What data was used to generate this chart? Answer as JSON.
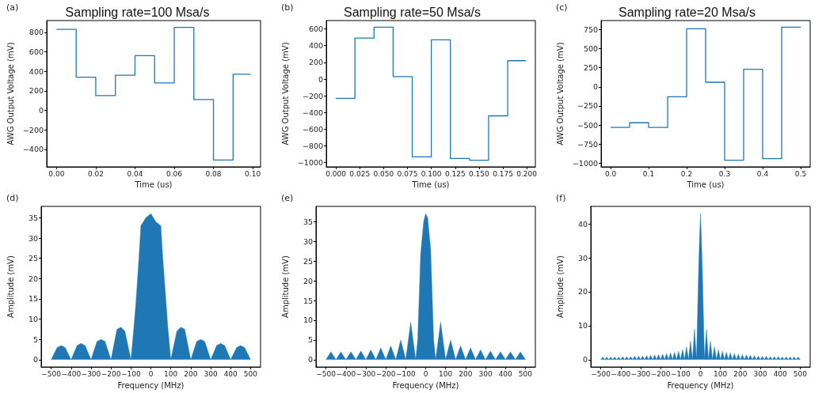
{
  "chart_data": [
    {
      "type": "step",
      "title": "Sampling rate=100 Msa/s",
      "annotations": [
        "(a)"
      ],
      "xlabel": "Time (us)",
      "ylabel": "AWG Output Voltage (mV)",
      "x": [
        0,
        0.01,
        0.02,
        0.03,
        0.04,
        0.05,
        0.06,
        0.07,
        0.08,
        0.09,
        0.099
      ],
      "series": [
        {
          "color": "#1f77b4",
          "values": [
            830,
            340,
            150,
            360,
            560,
            280,
            850,
            110,
            -510,
            370,
            370
          ]
        }
      ],
      "xlim": [
        -0.005,
        0.104
      ],
      "xticks": [
        {
          "value": 0,
          "label": "0.00"
        },
        0.02,
        0.04,
        0.06,
        0.08,
        {
          "value": 0.1,
          "label": "0.10"
        }
      ],
      "ylim": [
        -580,
        920
      ],
      "yticks": [
        {
          "value": -400,
          "label": "−400"
        },
        {
          "value": -200,
          "label": "−200"
        },
        0,
        200,
        400,
        600,
        800
      ]
    },
    {
      "type": "step",
      "title": "Sampling rate=50 Msa/s",
      "annotations": [
        "(b)"
      ],
      "xlabel": "Time (us)",
      "ylabel": "AWG Output Voltage (mV)",
      "x": [
        0,
        0.02,
        0.04,
        0.06,
        0.08,
        0.1,
        0.12,
        0.14,
        0.16,
        0.18,
        0.199
      ],
      "series": [
        {
          "color": "#1f77b4",
          "values": [
            -230,
            490,
            620,
            30,
            -930,
            470,
            -950,
            -970,
            -440,
            220,
            220
          ]
        }
      ],
      "xlim": [
        -0.01,
        0.209
      ],
      "xticks": [
        {
          "value": 0,
          "label": "0.000"
        },
        0.025,
        {
          "value": 0.05,
          "label": "0.050"
        },
        0.075,
        {
          "value": 0.1,
          "label": "0.100"
        },
        0.125,
        {
          "value": 0.15,
          "label": "0.150"
        },
        0.175,
        {
          "value": 0.2,
          "label": "0.200"
        }
      ],
      "ylim": [
        -1050,
        700
      ],
      "yticks": [
        {
          "value": -1000,
          "label": "−1000"
        },
        {
          "value": -800,
          "label": "−800"
        },
        {
          "value": -600,
          "label": "−600"
        },
        {
          "value": -400,
          "label": "−400"
        },
        {
          "value": -200,
          "label": "−200"
        },
        0,
        200,
        400,
        600
      ]
    },
    {
      "type": "step",
      "title": "Sampling rate=20 Msa/s",
      "annotations": [
        "(c)"
      ],
      "xlabel": "Time (us)",
      "ylabel": "AWG Output Voltage (mV)",
      "x": [
        0,
        0.05,
        0.1,
        0.15,
        0.2,
        0.25,
        0.3,
        0.35,
        0.4,
        0.45,
        0.5
      ],
      "series": [
        {
          "color": "#1f77b4",
          "values": [
            -530,
            -470,
            -530,
            -130,
            760,
            60,
            -960,
            230,
            -940,
            780,
            780
          ]
        }
      ],
      "xlim": [
        -0.025,
        0.525
      ],
      "xticks": [
        {
          "value": 0,
          "label": "0.0"
        },
        0.1,
        0.2,
        0.3,
        0.4,
        0.5
      ],
      "ylim": [
        -1047,
        867
      ],
      "yticks": [
        {
          "value": -1000,
          "label": "−1000"
        },
        {
          "value": -750,
          "label": "−750"
        },
        {
          "value": -500,
          "label": "−500"
        },
        {
          "value": -250,
          "label": "−250"
        },
        0,
        250,
        500,
        750
      ]
    },
    {
      "type": "area",
      "annotations": [
        "(d)"
      ],
      "xlabel": "Frequency (MHz)",
      "ylabel": "Amplitude (mV)",
      "x": [
        -500,
        -470,
        -450,
        -430,
        -400,
        -370,
        -350,
        -330,
        -300,
        -270,
        -250,
        -230,
        -200,
        -170,
        -150,
        -130,
        -100,
        -85,
        -75,
        -60,
        -50,
        -25,
        0,
        25,
        50,
        60,
        75,
        85,
        100,
        130,
        150,
        170,
        200,
        230,
        250,
        270,
        300,
        330,
        350,
        370,
        400,
        430,
        450,
        470,
        500
      ],
      "series": [
        {
          "color": "#1f77b4",
          "values": [
            0,
            3,
            3.5,
            3,
            0,
            3.5,
            4,
            3.5,
            0,
            4.5,
            5,
            4.5,
            0,
            7.5,
            8,
            7,
            0,
            8,
            14,
            25,
            33,
            35,
            36,
            34,
            33,
            25,
            15,
            8,
            0,
            7,
            8,
            7.5,
            0,
            4.5,
            5,
            4.5,
            0,
            3.5,
            4,
            3.5,
            0,
            3,
            3.5,
            3,
            0
          ]
        }
      ],
      "xlim": [
        -550,
        550
      ],
      "xticks": [
        {
          "value": -500,
          "label": "−500"
        },
        {
          "value": -400,
          "label": "−400"
        },
        {
          "value": -300,
          "label": "−300"
        },
        {
          "value": -200,
          "label": "−200"
        },
        {
          "value": -100,
          "label": "−100"
        },
        0,
        100,
        200,
        300,
        400,
        500
      ],
      "ylim": [
        -1.8,
        37.8
      ],
      "yticks": [
        0,
        5,
        10,
        15,
        20,
        25,
        30,
        35
      ]
    },
    {
      "type": "area",
      "annotations": [
        "(e)"
      ],
      "xlabel": "Frequency (MHz)",
      "ylabel": "Amplitude (mV)",
      "x": [
        -500,
        -475,
        -450,
        -425,
        -400,
        -375,
        -350,
        -325,
        -300,
        -275,
        -250,
        -225,
        -200,
        -175,
        -150,
        -125,
        -100,
        -75,
        -50,
        -40,
        -25,
        -10,
        0,
        10,
        25,
        40,
        50,
        75,
        100,
        125,
        150,
        175,
        200,
        225,
        250,
        275,
        300,
        325,
        350,
        375,
        400,
        425,
        450,
        475,
        500
      ],
      "series": [
        {
          "color": "#1f77b4",
          "values": [
            0,
            2,
            0,
            2,
            0,
            2,
            0,
            2.2,
            0,
            2.5,
            0,
            3,
            0,
            3.5,
            0,
            5,
            0,
            9.5,
            0,
            5,
            27,
            35,
            37,
            36,
            28,
            5,
            0,
            9.5,
            0,
            5,
            0,
            3.5,
            0,
            3,
            0,
            2.5,
            0,
            2.2,
            0,
            2,
            0,
            2,
            0,
            2,
            0
          ]
        }
      ],
      "xlim": [
        -550,
        550
      ],
      "xticks": [
        {
          "value": -500,
          "label": "−500"
        },
        {
          "value": -400,
          "label": "−400"
        },
        {
          "value": -300,
          "label": "−300"
        },
        {
          "value": -200,
          "label": "−200"
        },
        {
          "value": -100,
          "label": "−100"
        },
        0,
        100,
        200,
        300,
        400,
        500
      ],
      "ylim": [
        -1.85,
        38.85
      ],
      "yticks": [
        0,
        5,
        10,
        15,
        20,
        25,
        30,
        35
      ]
    },
    {
      "type": "area",
      "annotations": [
        "(f)"
      ],
      "xlabel": "Frequency (MHz)",
      "ylabel": "Amplitude (mV)",
      "x": [
        -500,
        -490,
        -480,
        -470,
        -460,
        -450,
        -440,
        -430,
        -420,
        -410,
        -400,
        -390,
        -380,
        -370,
        -360,
        -350,
        -340,
        -330,
        -320,
        -310,
        -300,
        -290,
        -280,
        -270,
        -260,
        -250,
        -240,
        -230,
        -220,
        -210,
        -200,
        -190,
        -180,
        -170,
        -160,
        -150,
        -140,
        -130,
        -120,
        -110,
        -100,
        -90,
        -80,
        -70,
        -60,
        -50,
        -40,
        -30,
        -20,
        -10,
        -5,
        0,
        5,
        10,
        20,
        30,
        40,
        50,
        60,
        70,
        80,
        90,
        100,
        110,
        120,
        130,
        140,
        150,
        160,
        170,
        180,
        190,
        200,
        210,
        220,
        230,
        240,
        250,
        260,
        270,
        280,
        290,
        300,
        310,
        320,
        330,
        340,
        350,
        360,
        370,
        380,
        390,
        400,
        410,
        420,
        430,
        440,
        450,
        460,
        470,
        480,
        490,
        500
      ],
      "series": [
        {
          "color": "#1f77b4",
          "values": [
            0,
            0.8,
            0,
            0.8,
            0,
            0.8,
            0,
            0.8,
            0,
            0.8,
            0,
            0.9,
            0,
            0.9,
            0,
            0.9,
            0,
            1,
            0,
            1,
            0,
            1.1,
            0,
            1.2,
            0,
            1.3,
            0,
            1.4,
            0,
            1.5,
            0,
            1.6,
            0,
            1.8,
            0,
            2,
            0,
            2.2,
            0,
            2.5,
            0,
            3,
            0,
            3.8,
            0,
            5.5,
            0,
            9,
            0,
            25,
            35,
            43,
            35,
            25,
            0,
            9,
            0,
            5.5,
            0,
            3.8,
            0,
            3,
            0,
            2.5,
            0,
            2.2,
            0,
            2,
            0,
            1.8,
            0,
            1.6,
            0,
            1.5,
            0,
            1.4,
            0,
            1.3,
            0,
            1.2,
            0,
            1.1,
            0,
            1,
            0,
            1,
            0,
            0.9,
            0,
            0.9,
            0,
            0.9,
            0,
            0.8,
            0,
            0.8,
            0,
            0.8,
            0,
            0.8,
            0,
            0.8,
            0
          ]
        }
      ],
      "xlim": [
        -550,
        550
      ],
      "xticks": [
        {
          "value": -500,
          "label": "−500"
        },
        {
          "value": -400,
          "label": "−400"
        },
        {
          "value": -300,
          "label": "−300"
        },
        {
          "value": -200,
          "label": "−200"
        },
        {
          "value": -100,
          "label": "−100"
        },
        0,
        100,
        200,
        300,
        400,
        500
      ],
      "ylim": [
        -2.15,
        45.15
      ],
      "yticks": [
        0,
        10,
        20,
        30,
        40
      ]
    }
  ]
}
